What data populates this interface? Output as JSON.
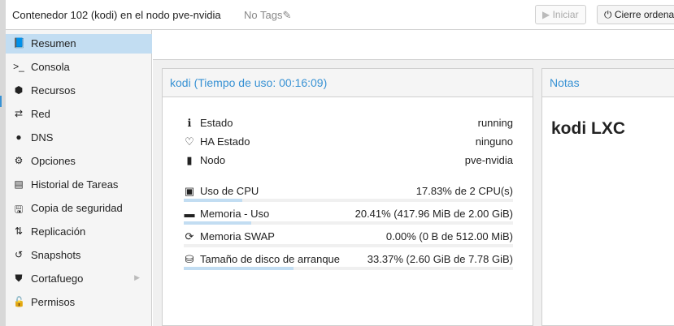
{
  "header": {
    "title": "Contenedor 102 (kodi) en el nodo pve-nvidia",
    "tags": "No Tags",
    "start_label": "Iniciar",
    "shutdown_label": "Cierre ordena"
  },
  "sidebar": {
    "items": [
      {
        "label": "Resumen",
        "icon": "book-icon",
        "glyph": "📘"
      },
      {
        "label": "Consola",
        "icon": "terminal-icon",
        "glyph": ">_"
      },
      {
        "label": "Recursos",
        "icon": "cube-icon",
        "glyph": "⬢"
      },
      {
        "label": "Red",
        "icon": "exchange-icon",
        "glyph": "⇄"
      },
      {
        "label": "DNS",
        "icon": "globe-icon",
        "glyph": "●"
      },
      {
        "label": "Opciones",
        "icon": "gear-icon",
        "glyph": "⚙"
      },
      {
        "label": "Historial de Tareas",
        "icon": "list-icon",
        "glyph": "▤"
      },
      {
        "label": "Copia de seguridad",
        "icon": "floppy-icon",
        "glyph": "🖫"
      },
      {
        "label": "Replicación",
        "icon": "retweet-icon",
        "glyph": "⇅"
      },
      {
        "label": "Snapshots",
        "icon": "history-icon",
        "glyph": "↺"
      },
      {
        "label": "Cortafuego",
        "icon": "shield-icon",
        "glyph": "⛊"
      },
      {
        "label": "Permisos",
        "icon": "unlock-icon",
        "glyph": "🔓"
      }
    ]
  },
  "summary": {
    "title": "kodi (Tiempo de uso: 00:16:09)",
    "status": [
      {
        "label": "Estado",
        "value": "running",
        "glyph": "ℹ",
        "icon": "info-icon"
      },
      {
        "label": "HA Estado",
        "value": "ninguno",
        "glyph": "♡",
        "icon": "heartbeat-icon"
      },
      {
        "label": "Nodo",
        "value": "pve-nvidia",
        "glyph": "▮",
        "icon": "building-icon"
      }
    ],
    "resources": [
      {
        "label": "Uso de CPU",
        "value": "17.83% de 2 CPU(s)",
        "glyph": "▣",
        "icon": "cpu-icon",
        "percent": 17.83
      },
      {
        "label": "Memoria - Uso",
        "value": "20.41% (417.96 MiB de 2.00 GiB)",
        "glyph": "▬",
        "icon": "memory-icon",
        "percent": 20.41
      },
      {
        "label": "Memoria SWAP",
        "value": "0.00% (0 B de 512.00 MiB)",
        "glyph": "⟳",
        "icon": "refresh-icon",
        "percent": 0
      },
      {
        "label": "Tamaño de disco de arranque",
        "value": "33.37% (2.60 GiB de 7.78 GiB)",
        "glyph": "⛁",
        "icon": "hdd-icon",
        "percent": 33.37
      }
    ]
  },
  "notes": {
    "title": "Notas",
    "content": "kodi LXC"
  }
}
